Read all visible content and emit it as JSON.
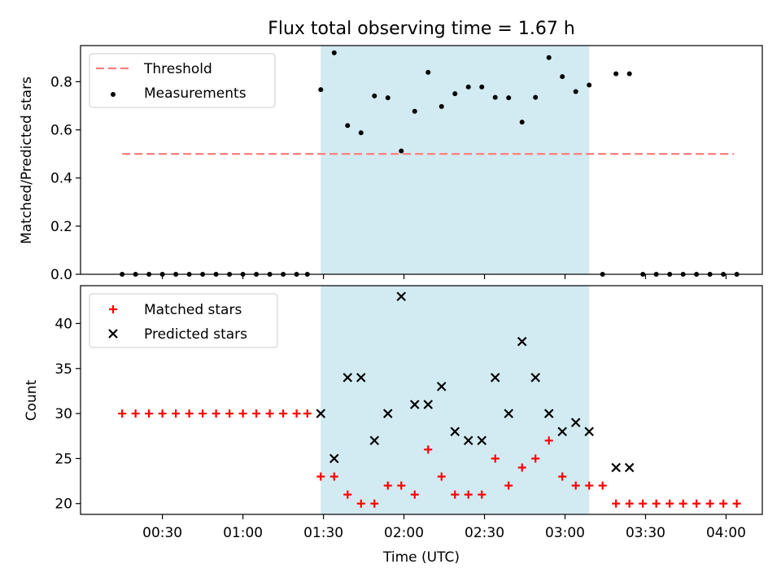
{
  "title": "Flux total observing time = 1.67 h",
  "colors": {
    "threshold": "#ff7f7f",
    "measurement": "#000000",
    "matched": "#ff0000",
    "predicted": "#000000",
    "shade": "#add8e6"
  },
  "chart_data": [
    {
      "type": "scatter",
      "panel": "top",
      "ylabel": "Matched/Predicted stars",
      "xlabel": "",
      "ylim": [
        0,
        0.95
      ],
      "yticks": [
        "0.0",
        "0.2",
        "0.4",
        "0.6",
        "0.8"
      ],
      "shaded_x": [
        "01:29",
        "03:09"
      ],
      "legend": {
        "placement": "upper-left",
        "entries": [
          "Threshold",
          "Measurements"
        ]
      },
      "series": [
        {
          "name": "Threshold",
          "kind": "dashed-line",
          "x": [
            "00:15",
            "04:03"
          ],
          "y": [
            0.5,
            0.5
          ]
        },
        {
          "name": "Measurements",
          "kind": "points",
          "x": [
            "00:15",
            "00:20",
            "00:25",
            "00:30",
            "00:35",
            "00:40",
            "00:45",
            "00:50",
            "00:55",
            "01:00",
            "01:05",
            "01:10",
            "01:15",
            "01:20",
            "01:24",
            "01:29",
            "01:34",
            "01:39",
            "01:44",
            "01:49",
            "01:54",
            "01:59",
            "02:04",
            "02:09",
            "02:14",
            "02:19",
            "02:24",
            "02:29",
            "02:34",
            "02:39",
            "02:44",
            "02:49",
            "02:54",
            "02:59",
            "03:04",
            "03:09",
            "03:14",
            "03:19",
            "03:24",
            "03:29",
            "03:34",
            "03:39",
            "03:44",
            "03:49",
            "03:54",
            "03:59",
            "04:04"
          ],
          "y": [
            0,
            0,
            0,
            0,
            0,
            0,
            0,
            0,
            0,
            0,
            0,
            0,
            0,
            0,
            0,
            0.767,
            0.92,
            0.618,
            0.588,
            0.741,
            0.733,
            0.512,
            0.677,
            0.839,
            0.697,
            0.75,
            0.778,
            0.778,
            0.735,
            0.733,
            0.632,
            0.735,
            0.9,
            0.821,
            0.759,
            0.786,
            0,
            0.833,
            0.833,
            0,
            0,
            0,
            0,
            0,
            0,
            0,
            0
          ]
        }
      ]
    },
    {
      "type": "scatter",
      "panel": "bottom",
      "ylabel": "Count",
      "xlabel": "Time (UTC)",
      "ylim": [
        18.8,
        44.2
      ],
      "yticks": [
        "20",
        "25",
        "30",
        "35",
        "40"
      ],
      "xticks": [
        "00:30",
        "01:00",
        "01:30",
        "02:00",
        "02:30",
        "03:00",
        "03:30",
        "04:00"
      ],
      "shaded_x": [
        "01:29",
        "03:09"
      ],
      "legend": {
        "placement": "upper-left",
        "entries": [
          "Matched stars",
          "Predicted stars"
        ]
      },
      "series": [
        {
          "name": "Matched stars",
          "marker": "plus",
          "x": [
            "00:15",
            "00:20",
            "00:25",
            "00:30",
            "00:35",
            "00:40",
            "00:45",
            "00:50",
            "00:55",
            "01:00",
            "01:05",
            "01:10",
            "01:15",
            "01:20",
            "01:24",
            "01:29",
            "01:34",
            "01:39",
            "01:44",
            "01:49",
            "01:54",
            "01:59",
            "02:04",
            "02:09",
            "02:14",
            "02:19",
            "02:24",
            "02:29",
            "02:34",
            "02:39",
            "02:44",
            "02:49",
            "02:54",
            "02:59",
            "03:04",
            "03:09",
            "03:14",
            "03:19",
            "03:24",
            "03:29",
            "03:34",
            "03:39",
            "03:44",
            "03:49",
            "03:54",
            "03:59",
            "04:04"
          ],
          "y": [
            30,
            30,
            30,
            30,
            30,
            30,
            30,
            30,
            30,
            30,
            30,
            30,
            30,
            30,
            30,
            23,
            23,
            21,
            20,
            20,
            22,
            22,
            21,
            26,
            23,
            21,
            21,
            21,
            25,
            22,
            24,
            25,
            27,
            23,
            22,
            22,
            22,
            20,
            20,
            20,
            20,
            20,
            20,
            20,
            20,
            20,
            20
          ]
        },
        {
          "name": "Predicted stars",
          "marker": "x",
          "x": [
            "01:29",
            "01:34",
            "01:39",
            "01:44",
            "01:49",
            "01:54",
            "01:59",
            "02:04",
            "02:09",
            "02:14",
            "02:19",
            "02:24",
            "02:29",
            "02:34",
            "02:39",
            "02:44",
            "02:49",
            "02:54",
            "02:59",
            "03:04",
            "03:09",
            "03:19",
            "03:24"
          ],
          "y": [
            30,
            25,
            34,
            34,
            27,
            30,
            43,
            31,
            31,
            33,
            28,
            27,
            27,
            34,
            30,
            38,
            34,
            30,
            28,
            29,
            28,
            24,
            24
          ]
        }
      ]
    }
  ]
}
